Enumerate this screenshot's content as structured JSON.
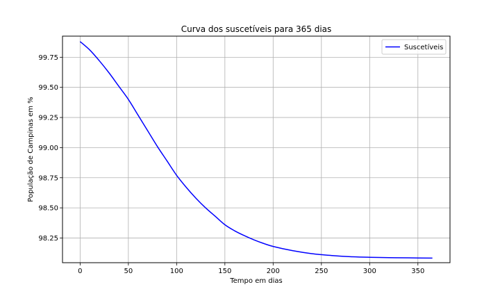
{
  "chart_data": {
    "type": "line",
    "title": "Curva dos suscetíveis para 365 dias",
    "xlabel": "Tempo em dias",
    "ylabel": "População de Campinas em %",
    "xlim": [
      -18.25,
      383.25
    ],
    "ylim": [
      98.045,
      99.925
    ],
    "xticks": [
      0,
      50,
      100,
      150,
      200,
      250,
      300,
      350
    ],
    "yticks": [
      98.25,
      98.5,
      98.75,
      99.0,
      99.25,
      99.5,
      99.75
    ],
    "xtick_labels": [
      "0",
      "50",
      "100",
      "150",
      "200",
      "250",
      "300",
      "350"
    ],
    "ytick_labels": [
      "98.25",
      "98.50",
      "98.75",
      "99.00",
      "99.25",
      "99.50",
      "99.75"
    ],
    "grid": true,
    "legend_position": "top-right",
    "series": [
      {
        "name": "Suscetíveis",
        "color": "#0000ff",
        "x": [
          0,
          10,
          20,
          30,
          40,
          50,
          60,
          70,
          80,
          90,
          100,
          110,
          120,
          130,
          140,
          150,
          160,
          170,
          180,
          190,
          200,
          220,
          240,
          260,
          280,
          300,
          320,
          340,
          365
        ],
        "y": [
          99.88,
          99.81,
          99.72,
          99.62,
          99.51,
          99.4,
          99.27,
          99.14,
          99.01,
          98.89,
          98.77,
          98.67,
          98.58,
          98.5,
          98.43,
          98.36,
          98.31,
          98.27,
          98.235,
          98.205,
          98.18,
          98.145,
          98.12,
          98.105,
          98.095,
          98.09,
          98.087,
          98.085,
          98.083
        ]
      }
    ]
  }
}
